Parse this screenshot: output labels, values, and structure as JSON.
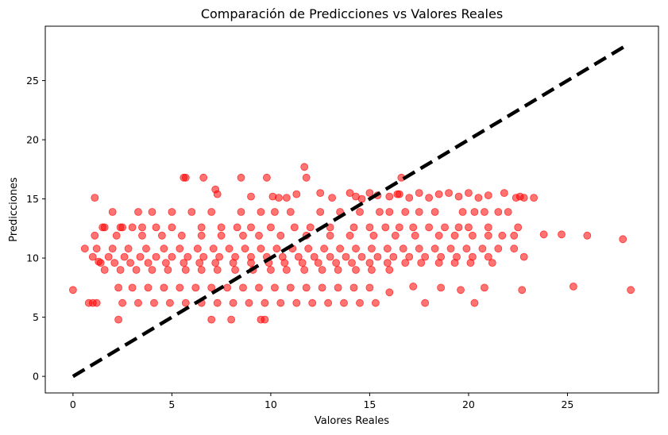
{
  "chart_data": {
    "type": "scatter",
    "title": "Comparación de Predicciones vs Valores Reales",
    "xlabel": "Valores Reales",
    "ylabel": "Predicciones",
    "xlim": [
      -1.4,
      29.6
    ],
    "ylim": [
      -1.4,
      29.6
    ],
    "xticks": [
      0,
      5,
      10,
      15,
      20,
      25
    ],
    "yticks": [
      0,
      5,
      10,
      15,
      20,
      25
    ],
    "grid": false,
    "point_color": "#ff0000",
    "point_opacity": 0.55,
    "reference_line": {
      "x": [
        0,
        28
      ],
      "y": [
        0,
        28
      ],
      "color": "#000000",
      "style": "dashed"
    },
    "series": [
      {
        "values_x": [
          0.0,
          0.6,
          0.8,
          1.0,
          1.1,
          1.2,
          1.3,
          1.6,
          2.3,
          2.4,
          5.6,
          5.7,
          7.0,
          8.0,
          9.5,
          9.7,
          11.7,
          11.8,
          7.2,
          7.3,
          6.6,
          8.5,
          9.0,
          9.8,
          10.1,
          10.4,
          10.8,
          11.3,
          12.5,
          13.1,
          16.4,
          16.6,
          14.0,
          14.3,
          14.6,
          15.0,
          15.4,
          16.0,
          16.5,
          17.0,
          17.5,
          18.0,
          18.5,
          19.0,
          19.5,
          20.0,
          20.5,
          21.0,
          21.8,
          22.4,
          22.6,
          22.8,
          23.3,
          2.0,
          3.3,
          4.0,
          5.0,
          6.0,
          7.0,
          8.5,
          9.5,
          10.2,
          11.0,
          12.5,
          13.5,
          14.5,
          15.5,
          16.0,
          16.8,
          17.5,
          18.3,
          19.7,
          20.3,
          20.8,
          21.5,
          22.0,
          1.5,
          2.5,
          3.0,
          3.5,
          4.2,
          5.0,
          6.5,
          7.5,
          8.3,
          9.0,
          10.0,
          11.2,
          12.0,
          13.0,
          14.2,
          15.0,
          15.8,
          16.5,
          17.2,
          18.0,
          18.8,
          19.5,
          20.0,
          21.0,
          22.5,
          23.8,
          24.7,
          26.0,
          1.1,
          2.2,
          3.5,
          4.5,
          5.5,
          6.5,
          7.5,
          8.6,
          9.4,
          10.5,
          11.8,
          13.0,
          14.0,
          15.2,
          16.3,
          17.3,
          18.5,
          19.3,
          20.2,
          21.0,
          21.7,
          22.3,
          27.8,
          1.2,
          2.0,
          2.8,
          3.7,
          4.6,
          5.4,
          6.3,
          7.1,
          7.9,
          8.7,
          9.5,
          10.3,
          11.1,
          11.9,
          12.7,
          13.5,
          14.3,
          15.1,
          15.9,
          16.7,
          17.5,
          18.3,
          19.1,
          19.9,
          20.7,
          21.5,
          22.3,
          1.0,
          1.8,
          2.6,
          3.4,
          4.2,
          5.0,
          5.8,
          6.6,
          7.4,
          8.2,
          9.0,
          9.8,
          10.6,
          11.4,
          12.2,
          13.0,
          13.8,
          14.6,
          15.4,
          16.2,
          17.0,
          17.8,
          18.6,
          19.4,
          20.2,
          21.0,
          22.8,
          1.4,
          2.1,
          2.9,
          3.8,
          4.7,
          5.6,
          6.4,
          7.2,
          8.1,
          9.0,
          9.9,
          10.7,
          11.6,
          12.4,
          13.3,
          14.1,
          15.0,
          15.9,
          16.8,
          17.6,
          18.5,
          19.3,
          20.1,
          21.2,
          1.6,
          2.4,
          3.2,
          4.0,
          4.8,
          5.7,
          6.5,
          7.3,
          8.2,
          9.1,
          10.0,
          10.8,
          11.7,
          12.6,
          13.4,
          14.3,
          15.1,
          16.0,
          2.3,
          3.0,
          3.8,
          4.6,
          5.4,
          6.2,
          7.0,
          7.8,
          8.6,
          9.4,
          10.2,
          11.0,
          11.8,
          12.6,
          13.4,
          14.2,
          15.0,
          16.0,
          17.2,
          18.6,
          19.6,
          20.8,
          22.7,
          25.3,
          28.2,
          2.5,
          3.3,
          4.1,
          4.9,
          5.7,
          6.5,
          7.3,
          8.1,
          8.9,
          9.7,
          10.5,
          11.3,
          12.1,
          12.9,
          13.7,
          14.5,
          15.3,
          17.8,
          20.3
        ],
        "values_y": [
          7.3,
          10.8,
          6.2,
          6.2,
          15.1,
          6.2,
          9.7,
          12.6,
          4.8,
          12.6,
          16.8,
          16.8,
          4.8,
          4.8,
          4.8,
          4.8,
          17.7,
          16.8,
          15.8,
          15.4,
          16.8,
          16.8,
          15.2,
          16.8,
          15.2,
          15.1,
          15.1,
          15.4,
          15.5,
          15.1,
          15.4,
          16.8,
          15.5,
          15.2,
          15.0,
          15.5,
          15.3,
          15.2,
          15.4,
          15.1,
          15.5,
          15.1,
          15.4,
          15.5,
          15.2,
          15.5,
          15.1,
          15.3,
          15.5,
          15.1,
          15.2,
          15.1,
          15.1,
          13.9,
          13.9,
          13.9,
          13.9,
          13.9,
          13.9,
          13.9,
          13.9,
          13.9,
          13.9,
          13.9,
          13.9,
          13.9,
          13.9,
          13.9,
          13.9,
          13.9,
          13.9,
          13.9,
          13.9,
          13.9,
          13.9,
          13.9,
          12.6,
          12.6,
          12.6,
          12.6,
          12.6,
          12.6,
          12.6,
          12.6,
          12.6,
          12.6,
          12.6,
          12.6,
          12.6,
          12.6,
          12.6,
          12.6,
          12.6,
          12.6,
          12.6,
          12.6,
          12.6,
          12.6,
          12.6,
          12.6,
          12.6,
          12.0,
          12.0,
          11.9,
          11.9,
          11.9,
          11.9,
          11.9,
          11.9,
          11.9,
          11.9,
          11.9,
          11.9,
          11.9,
          11.9,
          11.9,
          11.9,
          11.9,
          11.9,
          11.9,
          11.9,
          11.9,
          11.9,
          11.9,
          11.9,
          11.9,
          11.6,
          10.8,
          10.8,
          10.8,
          10.8,
          10.8,
          10.8,
          10.8,
          10.8,
          10.8,
          10.8,
          10.8,
          10.8,
          10.8,
          10.8,
          10.8,
          10.8,
          10.8,
          10.8,
          10.8,
          10.8,
          10.8,
          10.8,
          10.8,
          10.8,
          10.8,
          10.8,
          10.8,
          10.1,
          10.1,
          10.1,
          10.1,
          10.1,
          10.1,
          10.1,
          10.1,
          10.1,
          10.1,
          10.1,
          10.1,
          10.1,
          10.1,
          10.1,
          10.1,
          10.1,
          10.1,
          10.1,
          10.1,
          10.1,
          10.1,
          10.1,
          10.1,
          10.1,
          10.1,
          10.1,
          9.6,
          9.6,
          9.6,
          9.6,
          9.6,
          9.6,
          9.6,
          9.6,
          9.6,
          9.6,
          9.6,
          9.6,
          9.6,
          9.6,
          9.6,
          9.6,
          9.6,
          9.6,
          9.6,
          9.6,
          9.6,
          9.6,
          9.6,
          9.6,
          9.0,
          9.0,
          9.0,
          9.0,
          9.0,
          9.0,
          9.0,
          9.0,
          9.0,
          9.0,
          9.0,
          9.0,
          9.0,
          9.0,
          9.0,
          9.0,
          9.0,
          9.0,
          7.5,
          7.5,
          7.5,
          7.5,
          7.5,
          7.5,
          7.5,
          7.5,
          7.5,
          7.5,
          7.5,
          7.5,
          7.5,
          7.5,
          7.5,
          7.5,
          7.5,
          7.1,
          7.6,
          7.5,
          7.3,
          7.5,
          7.3,
          7.6,
          7.3,
          6.2,
          6.2,
          6.2,
          6.2,
          6.2,
          6.2,
          6.2,
          6.2,
          6.2,
          6.2,
          6.2,
          6.2,
          6.2,
          6.2,
          6.2,
          6.2,
          6.2,
          6.2,
          6.2
        ]
      }
    ]
  }
}
